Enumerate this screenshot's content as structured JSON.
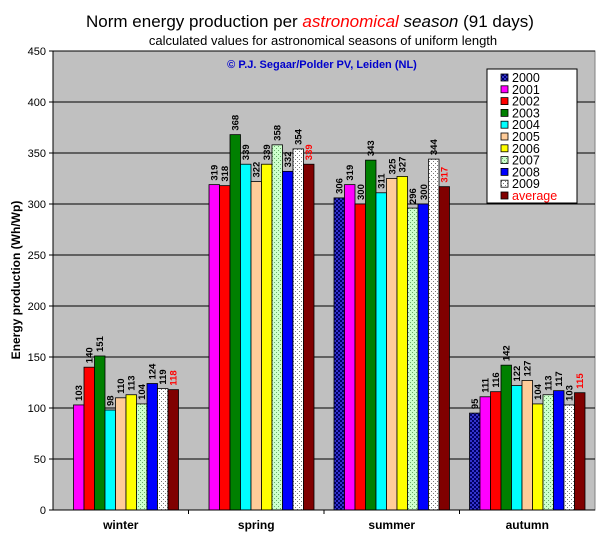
{
  "chart_data": {
    "type": "bar",
    "title_pre": "Norm energy production per ",
    "title_em": "astronomical",
    "title_mid": " ",
    "title_em2": "season",
    "title_post": " (91 days)",
    "subtitle": "calculated values for astronomical seasons of uniform length",
    "credit": "© P.J. Segaar/Polder PV, Leiden (NL)",
    "ylabel": "Energy production (Wh/Wp)",
    "xlabel": "",
    "ylim": [
      0,
      450
    ],
    "yticks": [
      "0",
      "50",
      "100",
      "150",
      "200",
      "250",
      "300",
      "350",
      "400",
      "450"
    ],
    "grid": true,
    "legend_position": "top-right",
    "categories": [
      "winter",
      "spring",
      "summer",
      "autumn"
    ],
    "series": [
      {
        "name": "2000",
        "color": "#000080",
        "values": [
          null,
          null,
          306,
          95
        ]
      },
      {
        "name": "2001",
        "color": "#ff00ff",
        "values": [
          103,
          319,
          319,
          111
        ]
      },
      {
        "name": "2002",
        "color": "#ff0000",
        "values": [
          140,
          318,
          300,
          116
        ]
      },
      {
        "name": "2003",
        "color": "#008000",
        "values": [
          151,
          368,
          343,
          142
        ]
      },
      {
        "name": "2004",
        "color": "#00ffff",
        "values": [
          98,
          339,
          311,
          122
        ]
      },
      {
        "name": "2005",
        "color": "#ffcc99",
        "values": [
          110,
          322,
          325,
          127
        ]
      },
      {
        "name": "2006",
        "color": "#ffff00",
        "values": [
          113,
          339,
          327,
          104
        ]
      },
      {
        "name": "2007",
        "color": "#ccffcc",
        "values": [
          104,
          358,
          296,
          113
        ]
      },
      {
        "name": "2008",
        "color": "#0000ff",
        "values": [
          124,
          332,
          300,
          117
        ]
      },
      {
        "name": "2009",
        "color": "#ffffff",
        "values": [
          119,
          354,
          344,
          103
        ]
      },
      {
        "name": "average",
        "color": "#800000",
        "values": [
          118,
          339,
          317,
          115
        ]
      }
    ],
    "label_color_default": "#000000",
    "label_color_average": "#ff0000",
    "legend_text_color_average": "#ff0000",
    "title_em_color": "#ff0000",
    "credit_color": "#0000cc",
    "plot_background": "#c0c0c0"
  }
}
